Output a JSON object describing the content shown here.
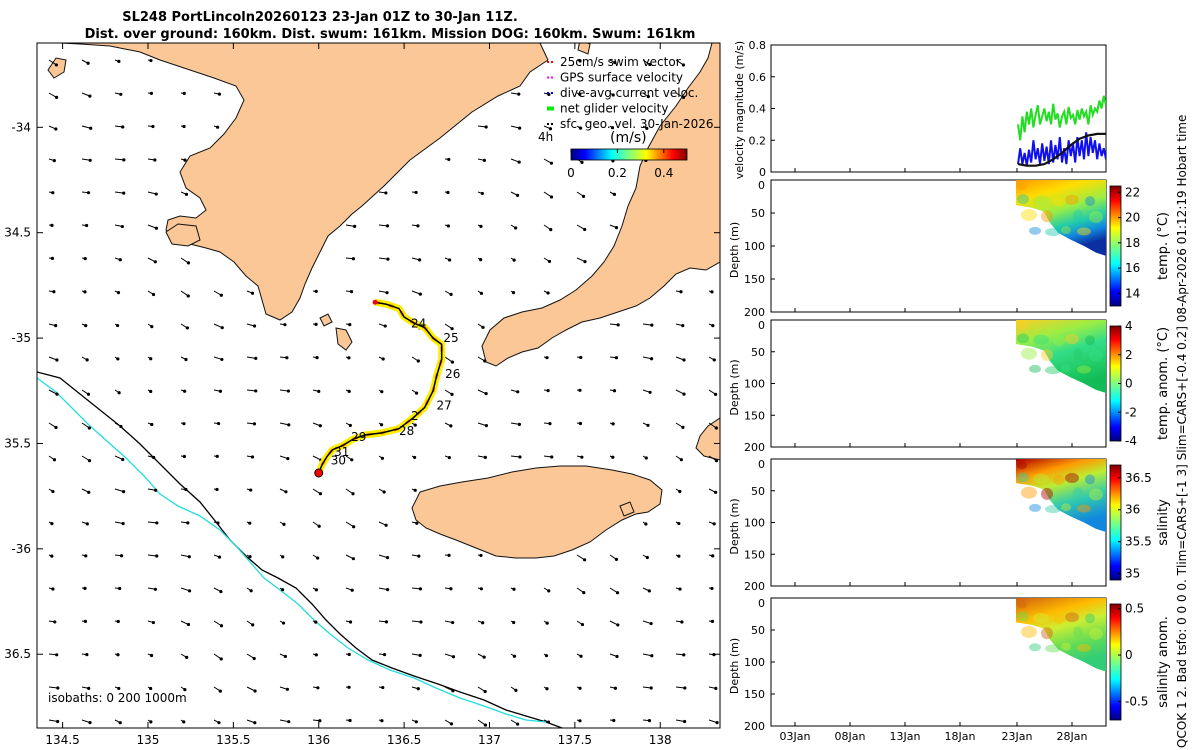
{
  "title": {
    "line1": "SL248 PortLincoln20260123 23-Jan 01Z to 30-Jan 11Z.",
    "line2": "Dist. over ground: 160km. Dist. swum: 161km. Mission DOG: 160km. Swum: 161km"
  },
  "side_text": "QCOK 1  2. Bad tsfo: 0  0  0  0. Tlim=CARS+[-1 3] Slim=CARS+[-0.4 0.2] 08-Apr-2026 01:12:19 Hobart time",
  "map": {
    "x_ticks": [
      134.5,
      135,
      135.5,
      136,
      136.5,
      137,
      137.5,
      138
    ],
    "x_tick_labels": [
      "134.5",
      "135",
      "135.5",
      "136",
      "136.5",
      "137",
      "137.5",
      "138"
    ],
    "y_ticks": [
      -34,
      -34.5,
      -35,
      -35.5,
      -36,
      -36.5
    ],
    "y_tick_labels": [
      "-34",
      "34.5",
      "-35",
      "35.5",
      "-36",
      "36.5"
    ],
    "lon_range": [
      134.35,
      138.35
    ],
    "lat_range": [
      -36.85,
      -33.6
    ],
    "isobaths_label": "isobaths: 0   200  1000m",
    "legend": [
      {
        "label": "25cm/s swim vector",
        "color": "#ff0000"
      },
      {
        "label": "GPS surface velocity",
        "color": "#ff00ff"
      },
      {
        "label": "dive-avg current veloc.",
        "color": "#0000ff"
      },
      {
        "label": "net glider velocity",
        "color": "#00ee00"
      },
      {
        "label": "sfc. geo. vel. 30-Jan-2026",
        "color": "#000000"
      }
    ],
    "colorbar": {
      "label": "(m/s)",
      "ticks": [
        "0",
        "0.2",
        "0.4"
      ],
      "range": [
        0,
        0.5
      ]
    },
    "time_label": "4h",
    "track_day_labels": [
      {
        "day": "24",
        "lon": 136.54,
        "lat": -34.93
      },
      {
        "day": "25",
        "lon": 136.73,
        "lat": -35.0
      },
      {
        "day": "26",
        "lon": 136.74,
        "lat": -35.17
      },
      {
        "day": "27",
        "lon": 136.69,
        "lat": -35.32
      },
      {
        "day": "2",
        "lon": 136.54,
        "lat": -35.37
      },
      {
        "day": "28",
        "lon": 136.47,
        "lat": -35.44
      },
      {
        "day": "29",
        "lon": 136.19,
        "lat": -35.47
      },
      {
        "day": "31",
        "lon": 136.09,
        "lat": -35.54
      },
      {
        "day": "30",
        "lon": 136.07,
        "lat": -35.58
      }
    ],
    "track_points": [
      [
        136.33,
        -34.83
      ],
      [
        136.4,
        -34.84
      ],
      [
        136.47,
        -34.86
      ],
      [
        136.5,
        -34.9
      ],
      [
        136.56,
        -34.93
      ],
      [
        136.62,
        -34.95
      ],
      [
        136.67,
        -35.0
      ],
      [
        136.72,
        -35.03
      ],
      [
        136.72,
        -35.1
      ],
      [
        136.69,
        -35.18
      ],
      [
        136.67,
        -35.25
      ],
      [
        136.62,
        -35.33
      ],
      [
        136.55,
        -35.38
      ],
      [
        136.47,
        -35.43
      ],
      [
        136.37,
        -35.45
      ],
      [
        136.27,
        -35.46
      ],
      [
        136.2,
        -35.48
      ],
      [
        136.14,
        -35.51
      ],
      [
        136.08,
        -35.53
      ],
      [
        136.05,
        -35.56
      ],
      [
        136.02,
        -35.6
      ],
      [
        136.0,
        -35.64
      ]
    ]
  },
  "chart_data": [
    {
      "type": "line",
      "title": "",
      "ylabel": "velocity magnitude (m/s)",
      "ylim": [
        0,
        0.8
      ],
      "yticks": [
        "0",
        "0.2",
        "0.4",
        "0.6",
        "0.8"
      ],
      "series": [
        {
          "name": "net glider velocity",
          "color": "#22dd22",
          "x": [
            0,
            1,
            2,
            3,
            4,
            5,
            6,
            7,
            8,
            9,
            10,
            11,
            12,
            13,
            14,
            15,
            16,
            17,
            18,
            19,
            20,
            21,
            22,
            23,
            24,
            25,
            26,
            27,
            28,
            29,
            30,
            31,
            32,
            33,
            34,
            35,
            36,
            37,
            38,
            39,
            40
          ],
          "values": [
            0.3,
            0.2,
            0.35,
            0.25,
            0.38,
            0.3,
            0.4,
            0.28,
            0.36,
            0.42,
            0.3,
            0.35,
            0.4,
            0.32,
            0.38,
            0.3,
            0.43,
            0.33,
            0.37,
            0.28,
            0.35,
            0.38,
            0.3,
            0.41,
            0.34,
            0.36,
            0.3,
            0.39,
            0.33,
            0.4,
            0.35,
            0.38,
            0.3,
            0.42,
            0.36,
            0.4,
            0.38,
            0.45,
            0.4,
            0.48,
            0.42
          ]
        },
        {
          "name": "dive-avg current veloc.",
          "color": "#1010ee",
          "x": [
            0,
            1,
            2,
            3,
            4,
            5,
            6,
            7,
            8,
            9,
            10,
            11,
            12,
            13,
            14,
            15,
            16,
            17,
            18,
            19,
            20,
            21,
            22,
            23,
            24,
            25,
            26,
            27,
            28,
            29,
            30,
            31,
            32,
            33,
            34,
            35,
            36,
            37,
            38,
            39,
            40
          ],
          "values": [
            0.05,
            0.15,
            0.05,
            0.12,
            0.04,
            0.14,
            0.06,
            0.2,
            0.08,
            0.15,
            0.05,
            0.18,
            0.07,
            0.16,
            0.05,
            0.2,
            0.06,
            0.17,
            0.08,
            0.22,
            0.06,
            0.15,
            0.05,
            0.2,
            0.1,
            0.18,
            0.06,
            0.22,
            0.1,
            0.2,
            0.08,
            0.25,
            0.1,
            0.22,
            0.12,
            0.2,
            0.08,
            0.18,
            0.1,
            0.15,
            0.08
          ]
        },
        {
          "name": "sfc. geo. vel.",
          "color": "#111111",
          "x": [
            0,
            4,
            8,
            12,
            16,
            20,
            24,
            28,
            32,
            36,
            40
          ],
          "values": [
            0.05,
            0.04,
            0.04,
            0.05,
            0.08,
            0.12,
            0.17,
            0.21,
            0.23,
            0.24,
            0.24
          ]
        }
      ]
    },
    {
      "type": "heatmap",
      "ylabel": "Depth (m)",
      "ylim": [
        0,
        200
      ],
      "yticks": [
        "0",
        "50",
        "100",
        "150",
        "200"
      ],
      "colorbar_label": "temp. (°C)",
      "colorbar_ticks": [
        "22",
        "20",
        "18",
        "16",
        "14"
      ],
      "colorbar_range": [
        13,
        22.5
      ]
    },
    {
      "type": "heatmap",
      "ylabel": "Depth (m)",
      "ylim": [
        0,
        200
      ],
      "yticks": [
        "0",
        "50",
        "100",
        "150",
        "200"
      ],
      "colorbar_label": "temp. anom. (°C)",
      "colorbar_ticks": [
        "4",
        "2",
        "0",
        "-2",
        "-4"
      ],
      "colorbar_range": [
        -4,
        4
      ]
    },
    {
      "type": "heatmap",
      "ylabel": "Depth (m)",
      "ylim": [
        0,
        200
      ],
      "yticks": [
        "0",
        "50",
        "100",
        "150",
        "200"
      ],
      "colorbar_label": "salinity",
      "colorbar_ticks": [
        "36.5",
        "36",
        "35.5",
        "35"
      ],
      "colorbar_range": [
        34.9,
        36.7
      ]
    },
    {
      "type": "heatmap",
      "ylabel": "Depth (m)",
      "ylim": [
        0,
        200
      ],
      "yticks": [
        "0",
        "50",
        "100",
        "150",
        "200"
      ],
      "colorbar_label": "salinity anom.",
      "colorbar_ticks": [
        "0.5",
        "0",
        "-0.5"
      ],
      "colorbar_range": [
        -0.7,
        0.55
      ]
    }
  ],
  "time_axis": {
    "labels": [
      "03Jan",
      "08Jan",
      "13Jan",
      "18Jan",
      "23Jan",
      "28Jan"
    ]
  }
}
